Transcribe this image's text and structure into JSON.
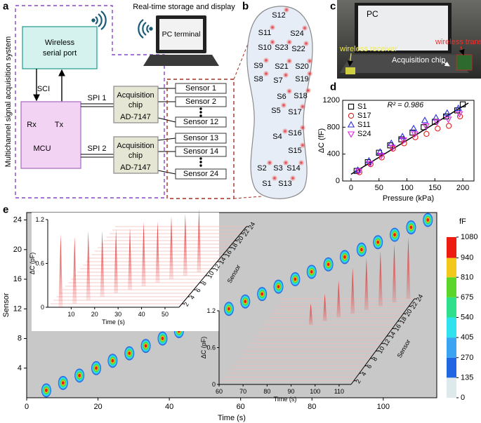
{
  "panel_labels": [
    "a",
    "b",
    "c",
    "d",
    "e"
  ],
  "diagram": {
    "system_label": "Multichannel signal acquisition system",
    "caption": "Real-time storage and display",
    "pc": "PC terminal",
    "wireless_port": [
      "Wireless",
      "serial port"
    ],
    "sci": "SCI",
    "rx": "Rx",
    "tx": "Tx",
    "mcu": "MCU",
    "spi": [
      "SPI 1",
      "SPI 2"
    ],
    "chips": [
      [
        "Acquisition",
        "chip",
        "AD-7147"
      ],
      [
        "Acquisition",
        "chip",
        "AD-7147"
      ]
    ],
    "sensors": [
      "Sensor 1",
      "Sensor 2",
      "Sensor 12",
      "Sensor 13",
      "Sensor 14",
      "Sensor 24"
    ]
  },
  "insole": {
    "sensors": [
      "S12",
      "S11",
      "S24",
      "S10",
      "S23",
      "S22",
      "S9",
      "S21",
      "S20",
      "S8",
      "S7",
      "S19",
      "S6",
      "S18",
      "S5",
      "S17",
      "S4",
      "S16",
      "S15",
      "S2",
      "S3",
      "S14",
      "S1",
      "S13"
    ]
  },
  "photo": {
    "pc": "PC",
    "receiver": "wireless receiver",
    "transmitter": "wireless transmitter",
    "chip": "Acquisition chip"
  },
  "chart_data": [
    {
      "type": "scatter",
      "xlabel": "Pressure (kPa)",
      "ylabel": "ΔC (fF)",
      "annotation": "R² = 0.986",
      "xlim": [
        -15,
        220
      ],
      "ylim": [
        0,
        1200
      ],
      "xticks": [
        0,
        50,
        100,
        150,
        200
      ],
      "yticks": [
        0,
        400,
        800,
        1200
      ],
      "legend": "top-left",
      "series": [
        {
          "name": "S1",
          "color": "#000000",
          "marker": "square",
          "x": [
            10,
            30,
            50,
            70,
            90,
            110,
            130,
            150,
            170,
            190,
            200
          ],
          "values": [
            150,
            280,
            420,
            530,
            620,
            720,
            800,
            880,
            960,
            1050,
            1140
          ]
        },
        {
          "name": "S17",
          "color": "#e02020",
          "marker": "circle",
          "x": [
            15,
            35,
            55,
            75,
            95,
            115,
            135,
            155,
            175,
            195
          ],
          "values": [
            130,
            250,
            350,
            480,
            560,
            650,
            700,
            780,
            820,
            960
          ]
        },
        {
          "name": "S11",
          "color": "#2a2ae0",
          "marker": "triangle",
          "x": [
            12,
            32,
            52,
            72,
            92,
            112,
            132,
            152,
            172,
            192
          ],
          "values": [
            160,
            300,
            430,
            560,
            660,
            780,
            900,
            940,
            1010,
            1080
          ]
        },
        {
          "name": "S24",
          "color": "#e020e0",
          "marker": "triangle-down",
          "x": [
            14,
            34,
            54,
            74,
            94,
            114,
            134,
            154,
            174,
            194
          ],
          "values": [
            150,
            260,
            380,
            500,
            610,
            700,
            820,
            880,
            920,
            1000
          ]
        }
      ],
      "fit": {
        "color": "#000000",
        "x": [
          0,
          210
        ],
        "values": [
          100,
          1160
        ]
      }
    },
    {
      "type": "heatmap",
      "xlabel": "Time (s)",
      "ylabel": "Sensor",
      "background": "#c8c8c8",
      "xlim": [
        0,
        115
      ],
      "ylim": [
        0,
        25
      ],
      "xticks": [
        0,
        20,
        40,
        60,
        80,
        100
      ],
      "yticks": [
        4,
        8,
        12,
        16,
        20,
        24
      ],
      "x": [
        5.5,
        10.2,
        14.8,
        19.5,
        24.1,
        28.8,
        33.4,
        38.1,
        42.7,
        47.4,
        52.0,
        56.7,
        61.3,
        66.0,
        70.6,
        75.3,
        79.9,
        84.6,
        89.2,
        93.9,
        98.5,
        103.2,
        107.8,
        112.5
      ],
      "values": [
        1,
        2,
        3,
        4,
        5,
        6,
        7,
        8,
        9,
        10,
        11,
        12,
        13,
        14,
        15,
        16,
        17,
        18,
        19,
        20,
        21,
        22,
        23,
        24
      ],
      "colorbar": {
        "label": "fF",
        "ticks": [
          0,
          135,
          270,
          405,
          540,
          675,
          810,
          940,
          1080
        ],
        "colors": [
          "#dde9ea",
          "#1f66e0",
          "#3aa4f2",
          "#30e2ee",
          "#2ee08a",
          "#5ad62a",
          "#f2c81c",
          "#ee1c10"
        ]
      }
    },
    {
      "type": "waterfall",
      "xlabel": "Time (s)",
      "ylabel": "ΔC (pF)",
      "zlabel": "Sensor",
      "color": "#e53030",
      "xlim": [
        0,
        56
      ],
      "ylim": [
        0,
        1.2
      ],
      "zlim": [
        1,
        24
      ],
      "xticks": [
        10,
        20,
        30,
        40,
        50
      ],
      "yticks": [
        0,
        0.6,
        1.2
      ],
      "zticks": [
        2,
        4,
        6,
        8,
        10,
        12,
        14,
        16,
        18,
        20,
        22,
        24
      ],
      "sensors": [
        1,
        2,
        3,
        4,
        5,
        6,
        7,
        8,
        9,
        10,
        11
      ],
      "x": [
        5.5,
        10.2,
        14.8,
        19.5,
        24.1,
        28.8,
        33.4,
        38.1,
        42.7,
        47.4,
        52.0
      ],
      "values": [
        1.0,
        0.92,
        0.95,
        0.9,
        0.88,
        0.85,
        0.88,
        0.84,
        0.86,
        0.85,
        0.87
      ]
    },
    {
      "type": "waterfall",
      "xlabel": "Time (s)",
      "ylabel": "ΔC (pF)",
      "zlabel": "Sensor",
      "color": "#e53030",
      "xlim": [
        60,
        115
      ],
      "ylim": [
        0,
        1.2
      ],
      "zlim": [
        1,
        24
      ],
      "xticks": [
        60,
        70,
        80,
        90,
        100,
        110
      ],
      "yticks": [
        0,
        0.6,
        1.2
      ],
      "zticks": [
        2,
        4,
        6,
        8,
        10,
        12,
        14,
        16,
        18,
        20,
        22,
        24
      ],
      "sensors": [
        17,
        18,
        19,
        20,
        21,
        22,
        23,
        24
      ],
      "x": [
        79.9,
        84.6,
        89.2,
        93.9,
        98.5,
        103.2,
        107.8,
        112.5
      ],
      "values": [
        0.35,
        0.45,
        0.6,
        0.75,
        0.85,
        0.9,
        0.95,
        1.0
      ]
    }
  ]
}
